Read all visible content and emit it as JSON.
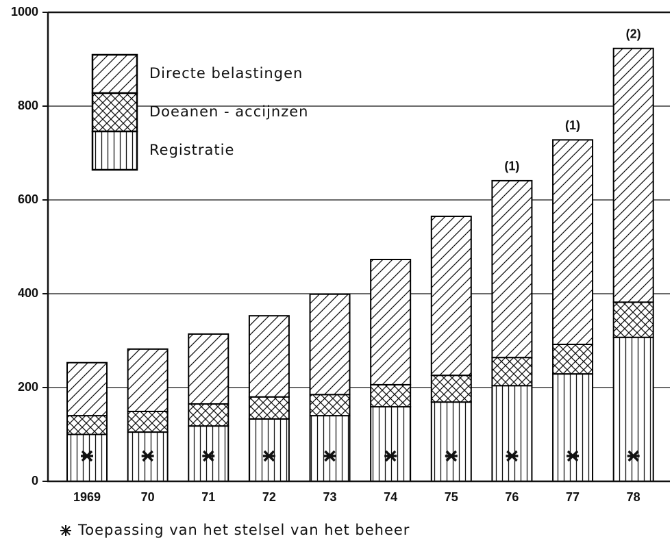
{
  "chart_data": {
    "type": "stacked_bar",
    "categories": [
      "1969",
      "70",
      "71",
      "72",
      "73",
      "74",
      "75",
      "76",
      "77",
      "78"
    ],
    "series": [
      {
        "name": "Registratie",
        "color": "#000000",
        "hatch": "vertical",
        "values": [
          100,
          105,
          118,
          133,
          140,
          159,
          169,
          204,
          229,
          307
        ]
      },
      {
        "name": "Doeanen - accijnzen",
        "color": "#000000",
        "hatch": "crosshatch",
        "values": [
          40,
          44,
          47,
          47,
          45,
          47,
          57,
          60,
          63,
          75
        ]
      },
      {
        "name": "Directe belastingen",
        "color": "#000000",
        "hatch": "diagonal",
        "values": [
          113,
          133,
          149,
          173,
          214,
          267,
          339,
          377,
          436,
          541
        ]
      }
    ],
    "annotations": [
      {
        "text": "(1)",
        "category": "76"
      },
      {
        "text": "(1)",
        "category": "77"
      },
      {
        "text": "(2)",
        "category": "78"
      }
    ],
    "footnote": "Toepassing van het stelsel van het beheer",
    "ylim": [
      0,
      1000
    ],
    "yticks": [
      0,
      200,
      400,
      600,
      800,
      1000
    ],
    "grid": true
  }
}
